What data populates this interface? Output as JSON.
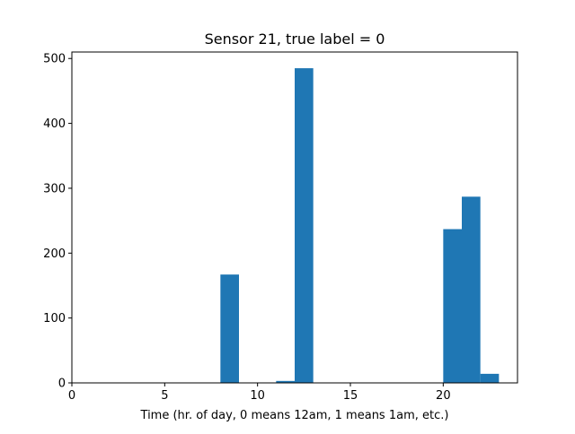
{
  "chart_data": {
    "type": "bar",
    "title": "Sensor 21, true label = 0",
    "xlabel": "Time (hr. of day, 0 means 12am, 1 means 1am, etc.)",
    "ylabel": "",
    "xlim": [
      0,
      24
    ],
    "ylim": [
      0,
      510
    ],
    "xticks": [
      0,
      5,
      10,
      15,
      20
    ],
    "yticks": [
      0,
      100,
      200,
      300,
      400,
      500
    ],
    "grid": false,
    "bar_color": "#1f77b4",
    "bins": [
      {
        "x0": 8,
        "x1": 9,
        "value": 167
      },
      {
        "x0": 11,
        "x1": 12,
        "value": 3
      },
      {
        "x0": 12,
        "x1": 13,
        "value": 485
      },
      {
        "x0": 20,
        "x1": 21,
        "value": 237
      },
      {
        "x0": 21,
        "x1": 22,
        "value": 287
      },
      {
        "x0": 22,
        "x1": 23,
        "value": 14
      }
    ]
  }
}
